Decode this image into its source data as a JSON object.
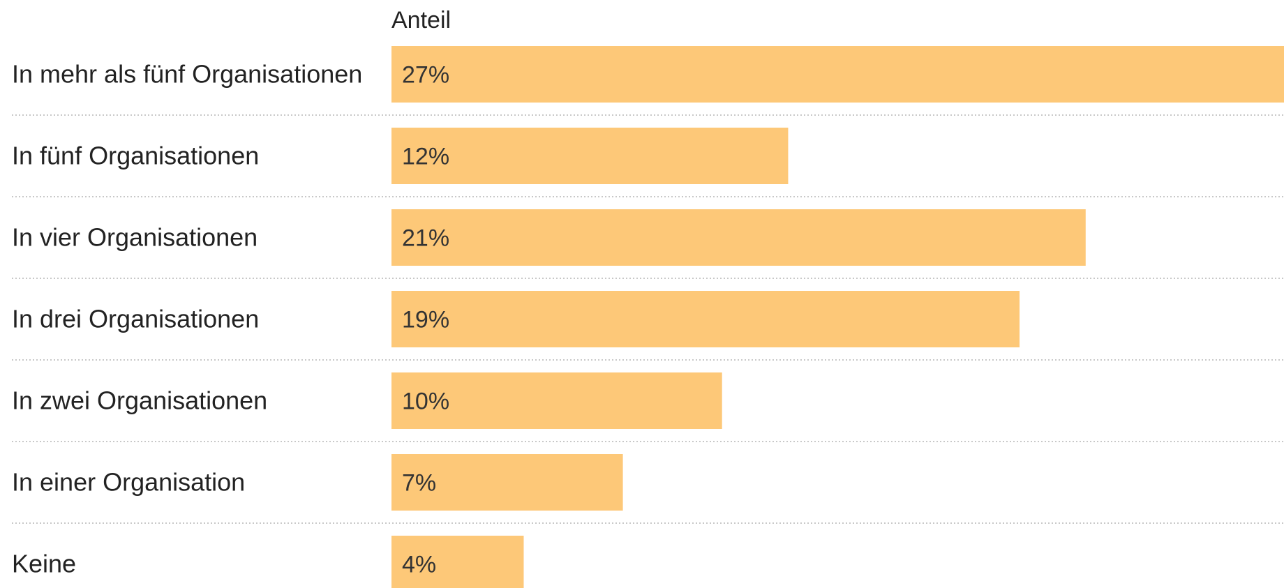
{
  "chart_data": {
    "type": "bar",
    "orientation": "horizontal",
    "column_header": "Anteil",
    "categories": [
      "In mehr als fünf Organisationen",
      "In fünf Organisationen",
      "In vier Organisationen",
      "In drei Organisationen",
      "In zwei Organisationen",
      "In einer Organisation",
      "Keine"
    ],
    "values": [
      27,
      12,
      21,
      19,
      10,
      7,
      4
    ],
    "value_labels": [
      "27%",
      "12%",
      "21%",
      "19%",
      "10%",
      "7%",
      "4%"
    ],
    "xlim": [
      0,
      27
    ],
    "unit": "%",
    "grid": false,
    "legend": "none",
    "bar_color": "#fdc878"
  }
}
